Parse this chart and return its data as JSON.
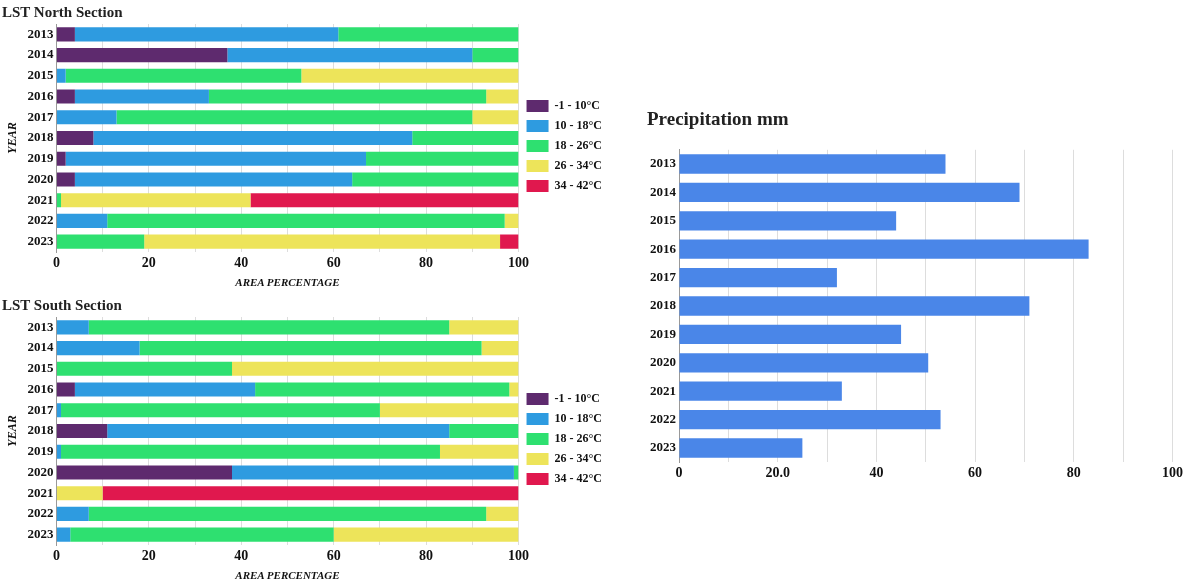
{
  "chart_data": [
    {
      "type": "bar",
      "title": "LST North Section",
      "xlabel": "AREA PERCENTAGE",
      "ylabel": "YEAR",
      "orientation": "horizontal",
      "stacked": true,
      "legend": "right",
      "grid": "x",
      "categories": [
        "2013",
        "2014",
        "2015",
        "2016",
        "2017",
        "2018",
        "2019",
        "2020",
        "2021",
        "2022",
        "2023"
      ],
      "xlim": [
        0,
        100
      ],
      "xticks": [
        0,
        {
          "value": 10,
          "label": null
        },
        20,
        {
          "value": 30,
          "label": null
        },
        40,
        {
          "value": 50,
          "label": null
        },
        60,
        {
          "value": 70,
          "label": null
        },
        80,
        {
          "value": 90,
          "label": null
        },
        100
      ],
      "series": [
        {
          "name": "-1 - 10°C",
          "color": "#5e2a6e",
          "values": [
            4,
            37,
            0,
            4,
            0,
            8,
            2,
            4,
            0,
            0,
            0
          ]
        },
        {
          "name": "10 - 18°C",
          "color": "#2e9be0",
          "values": [
            57,
            53,
            2,
            29,
            13,
            69,
            65,
            60,
            0,
            11,
            0
          ]
        },
        {
          "name": "18 - 26°C",
          "color": "#2ee070",
          "values": [
            39,
            10,
            51,
            60,
            77,
            23,
            33,
            36,
            1,
            86,
            19
          ]
        },
        {
          "name": "26 - 34°C",
          "color": "#ede45a",
          "values": [
            0,
            0,
            47,
            7,
            10,
            0,
            0,
            0,
            41,
            3,
            77
          ]
        },
        {
          "name": "34 - 42°C",
          "color": "#e0184e",
          "values": [
            0,
            0,
            0,
            0,
            0,
            0,
            0,
            0,
            58,
            0,
            4
          ]
        }
      ]
    },
    {
      "type": "bar",
      "title": "LST South Section",
      "xlabel": "AREA PERCENTAGE",
      "ylabel": "YEAR",
      "orientation": "horizontal",
      "stacked": true,
      "legend": "right",
      "grid": "x",
      "categories": [
        "2013",
        "2014",
        "2015",
        "2016",
        "2017",
        "2018",
        "2019",
        "2020",
        "2021",
        "2022",
        "2023"
      ],
      "xlim": [
        0,
        100
      ],
      "xticks": [
        0,
        {
          "value": 10,
          "label": null
        },
        20,
        {
          "value": 30,
          "label": null
        },
        40,
        {
          "value": 50,
          "label": null
        },
        60,
        {
          "value": 70,
          "label": null
        },
        80,
        {
          "value": 90,
          "label": null
        },
        100
      ],
      "series": [
        {
          "name": "-1 - 10°C",
          "color": "#5e2a6e",
          "values": [
            0,
            0,
            0,
            4,
            0,
            11,
            0,
            38,
            0,
            0,
            0
          ]
        },
        {
          "name": "10 - 18°C",
          "color": "#2e9be0",
          "values": [
            7,
            18,
            0,
            39,
            1,
            74,
            1,
            61,
            0,
            7,
            3
          ]
        },
        {
          "name": "18 - 26°C",
          "color": "#2ee070",
          "values": [
            78,
            74,
            38,
            55,
            69,
            15,
            82,
            1,
            0,
            86,
            57
          ]
        },
        {
          "name": "26 - 34°C",
          "color": "#ede45a",
          "values": [
            15,
            8,
            62,
            2,
            30,
            0,
            17,
            0,
            10,
            7,
            40
          ]
        },
        {
          "name": "34 - 42°C",
          "color": "#e0184e",
          "values": [
            0,
            0,
            0,
            0,
            0,
            0,
            0,
            0,
            90,
            0,
            0
          ]
        }
      ]
    },
    {
      "type": "bar",
      "title": "Precipitation mm",
      "orientation": "horizontal",
      "grid": "x",
      "categories": [
        "2013",
        "2014",
        "2015",
        "2016",
        "2017",
        "2018",
        "2019",
        "2020",
        "2021",
        "2022",
        "2023"
      ],
      "xlim": [
        0,
        100
      ],
      "xticks": [
        0,
        {
          "value": 10,
          "label": null
        },
        {
          "value": 20,
          "label": "20.0"
        },
        {
          "value": 30,
          "label": null
        },
        40,
        {
          "value": 50,
          "label": null
        },
        60,
        {
          "value": 70,
          "label": null
        },
        80,
        {
          "value": 90,
          "label": null
        },
        100
      ],
      "color": "#4a86e8",
      "values": [
        54,
        69,
        44,
        83,
        32,
        71,
        45,
        50.5,
        33,
        53,
        25
      ]
    }
  ]
}
